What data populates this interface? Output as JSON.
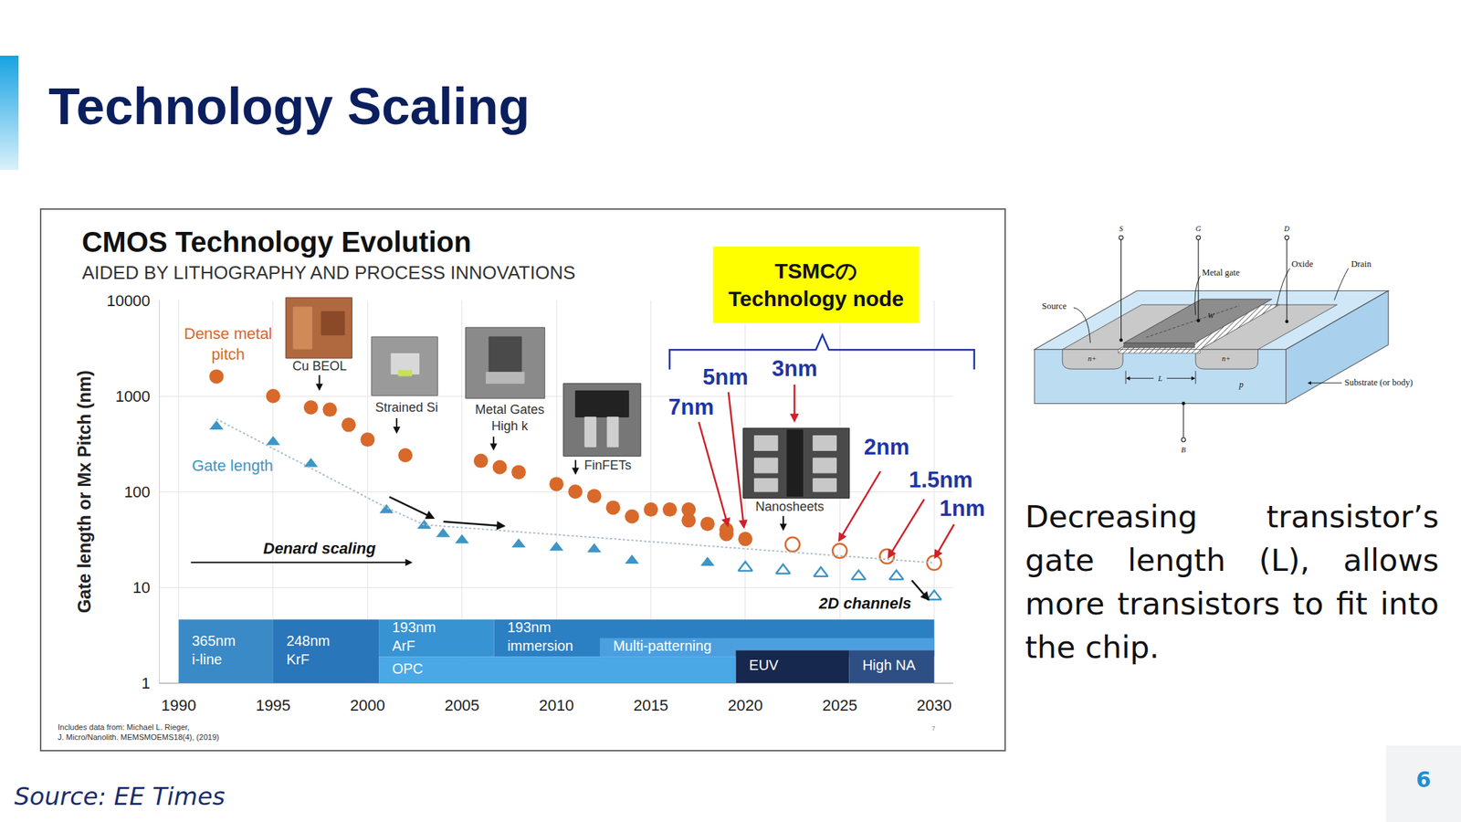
{
  "slide": {
    "title": "Technology Scaling",
    "text": "Decreasing transistor’s gate length (L), allows more transistors to fit into the chip.",
    "source": "Source: EE Times",
    "page": 6
  },
  "diagram": {
    "terminals": {
      "source": "S",
      "gate": "G",
      "drain": "D",
      "body": "B"
    },
    "source": "Source",
    "metal_gate": "Metal gate",
    "oxide": "Oxide",
    "drain": "Drain",
    "width": "W",
    "length": "L",
    "source_region": "n+",
    "drain_region": "n+",
    "body_region": "p",
    "substrate": "Substrate (or body)"
  },
  "chart_data": {
    "type": "scatter",
    "title": "CMOS Technology Evolution",
    "subtitle": "AIDED BY LITHOGRAPHY AND PROCESS INNOVATIONS",
    "y_label": "Gate length or Mx Pitch (nm)",
    "log": "y",
    "grid": true,
    "xlim": [
      1989,
      2031
    ],
    "xticks": [
      1990,
      1995,
      2000,
      2005,
      2010,
      2015,
      2020,
      2025,
      2030
    ],
    "ylim": [
      1,
      10000
    ],
    "yticks": [
      1,
      10,
      100,
      1000,
      10000
    ],
    "series": [
      {
        "name": "Dense metal pitch",
        "color": "#d8692a",
        "marker": "circle",
        "x": [
          1992,
          1995,
          1997,
          1998,
          1999,
          2000,
          2002,
          2006,
          2007,
          2008,
          2010,
          2011,
          2012,
          2013,
          2014,
          2015,
          2016,
          2017,
          2017,
          2018,
          2019,
          2019,
          2020
        ],
        "values": [
          1600,
          1000,
          760,
          720,
          500,
          350,
          240,
          210,
          180,
          160,
          120,
          100,
          90,
          68,
          55,
          65,
          65,
          65,
          50,
          46,
          40,
          36,
          32
        ]
      },
      {
        "color": "#d8692a",
        "marker": "circle-open",
        "x": [
          2022.5,
          2025,
          2027.5,
          2030
        ],
        "values": [
          28,
          24,
          21,
          18
        ]
      },
      {
        "name": "Gate length",
        "color": "#3f95c6",
        "marker": "triangle-up",
        "x": [
          1992,
          1995,
          1997,
          2001,
          2003,
          2004,
          2005,
          2008,
          2010,
          2012,
          2014,
          2018
        ],
        "values": [
          480,
          330,
          195,
          64,
          44,
          36,
          31,
          28,
          26,
          25,
          19,
          18
        ]
      },
      {
        "color": "#3f95c6",
        "marker": "triangle-up-open",
        "x": [
          2020,
          2022,
          2024,
          2026,
          2028,
          2030
        ],
        "values": [
          16,
          15,
          14,
          13,
          13,
          8
        ]
      },
      {
        "type": "line",
        "color": "#a9bccd",
        "line_style": "dotted",
        "x": [
          1992,
          2001,
          2003,
          2030
        ],
        "values": [
          575,
          68,
          45,
          18
        ]
      }
    ],
    "bands": [
      {
        "label": [
          "365nm",
          "i-line"
        ],
        "x": [
          1990,
          1995
        ],
        "y": [
          1,
          4.6
        ],
        "color": "#3a8ac8"
      },
      {
        "label": [
          "248nm",
          "KrF"
        ],
        "x": [
          1995,
          2000.6
        ],
        "y": [
          1,
          4.6
        ],
        "color": "#2a76bb"
      },
      {
        "label": [
          "193nm",
          "ArF"
        ],
        "x": [
          2000.6,
          2006.7
        ],
        "y": [
          1.88,
          4.6
        ],
        "color": "#3893d3"
      },
      {
        "label": [
          "193nm",
          "immersion"
        ],
        "x": [
          2006.7,
          2030
        ],
        "y": [
          1.88,
          4.6
        ],
        "color": "#2b7fc3"
      },
      {
        "label": [
          "Multi-patterning"
        ],
        "x": [
          2012.3,
          2030
        ],
        "y": [
          1.88,
          2.94
        ],
        "color": "#4c9fdf"
      },
      {
        "label": [
          "OPC"
        ],
        "x": [
          2000.6,
          2019.5
        ],
        "y": [
          1,
          1.88
        ],
        "color": "#4aa8e6"
      },
      {
        "label": [
          "EUV"
        ],
        "x": [
          2019.5,
          2025.5
        ],
        "y": [
          1,
          2.19
        ],
        "color": "#17284f"
      },
      {
        "label": [
          "High NA"
        ],
        "x": [
          2025.5,
          2030
        ],
        "y": [
          1,
          2.19
        ],
        "color": "#2e4f84"
      }
    ],
    "annotations": [
      {
        "text": "Cu BEOL"
      },
      {
        "text": "Strained Si"
      },
      {
        "text": [
          "Metal Gates",
          "High k"
        ]
      },
      {
        "text": "FinFETs"
      },
      {
        "text": "Nanosheets"
      },
      {
        "text": "Denard scaling"
      },
      {
        "text": "2D channels"
      },
      {
        "text": [
          "TSMCの",
          "Technology node"
        ]
      },
      {
        "text": "7nm"
      },
      {
        "text": "5nm"
      },
      {
        "text": "3nm"
      },
      {
        "text": "2nm"
      },
      {
        "text": "1.5nm"
      },
      {
        "text": "1nm"
      },
      {
        "text": [
          "Includes data from: Michael L. Rieger,",
          "J. Micro/Nanolith. MEMSMOEMS18(4), (2019)"
        ]
      },
      {
        "text": "7"
      }
    ]
  }
}
